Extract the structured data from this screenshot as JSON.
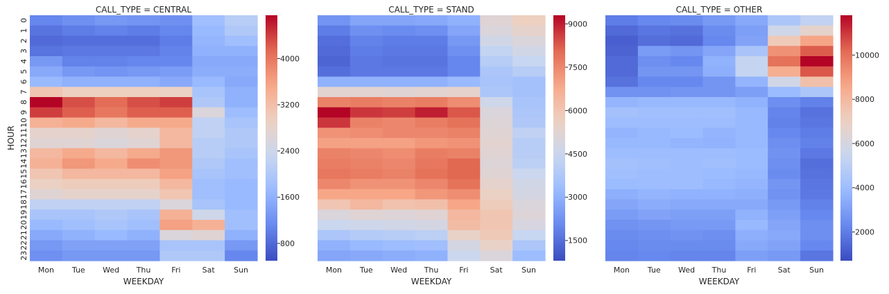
{
  "colormap": {
    "name": "coolwarm",
    "stops": [
      "#3b4cc0",
      "#6788ee",
      "#9abbff",
      "#c9d7f0",
      "#edd1c2",
      "#f7a889",
      "#e26952",
      "#b40426"
    ]
  },
  "chart_data": [
    {
      "type": "heatmap",
      "title": "CALL_TYPE = CENTRAL",
      "xlabel": "WEEKDAY",
      "ylabel": "HOUR",
      "x": [
        "Mon",
        "Tue",
        "Wed",
        "Thu",
        "Fri",
        "Sat",
        "Sun"
      ],
      "y": [
        "0",
        "1",
        "2",
        "3",
        "4",
        "5",
        "6",
        "7",
        "8",
        "9",
        "10",
        "11",
        "12",
        "13",
        "14",
        "15",
        "16",
        "17",
        "18",
        "19",
        "20",
        "21",
        "22",
        "23"
      ],
      "vmin": 500,
      "vmax": 4750,
      "colorbar_ticks": [
        800,
        1600,
        2400,
        3200,
        4000
      ],
      "values": [
        [
          1100,
          1200,
          1300,
          1250,
          1200,
          1800,
          2100
        ],
        [
          900,
          1000,
          1050,
          1000,
          1100,
          1700,
          2000
        ],
        [
          800,
          850,
          850,
          850,
          1000,
          1650,
          1800
        ],
        [
          900,
          950,
          950,
          950,
          1050,
          1600,
          1600
        ],
        [
          1300,
          1050,
          1050,
          1100,
          1100,
          1500,
          1500
        ],
        [
          1500,
          1300,
          1250,
          1300,
          1350,
          1550,
          1550
        ],
        [
          1700,
          1600,
          1600,
          1600,
          1500,
          1700,
          1500
        ],
        [
          3100,
          2950,
          2950,
          2950,
          2900,
          1900,
          1600
        ],
        [
          4750,
          4300,
          4100,
          4300,
          4400,
          2000,
          1600
        ],
        [
          4400,
          4200,
          4000,
          4200,
          4200,
          2600,
          1750
        ],
        [
          3400,
          3500,
          3300,
          3500,
          3500,
          2200,
          1900
        ],
        [
          2800,
          2800,
          2700,
          2800,
          3300,
          2200,
          2000
        ],
        [
          2700,
          2700,
          2600,
          2700,
          3300,
          2100,
          2000
        ],
        [
          3300,
          3500,
          3300,
          3500,
          3700,
          2100,
          1900
        ],
        [
          3400,
          3700,
          3500,
          3800,
          3700,
          2000,
          1800
        ],
        [
          3100,
          3300,
          3300,
          3300,
          3600,
          1900,
          1800
        ],
        [
          2900,
          3000,
          3000,
          3000,
          3300,
          1800,
          1700
        ],
        [
          2700,
          2800,
          2800,
          2800,
          3100,
          1800,
          1700
        ],
        [
          2200,
          2200,
          2200,
          2200,
          2600,
          1900,
          1700
        ],
        [
          1900,
          1900,
          2000,
          1900,
          3400,
          2400,
          1800
        ],
        [
          1700,
          1800,
          1900,
          1800,
          3600,
          3400,
          1800
        ],
        [
          1500,
          1600,
          1700,
          1600,
          2600,
          2700,
          1600
        ],
        [
          1300,
          1400,
          1400,
          1400,
          1900,
          1900,
          1300
        ],
        [
          1200,
          1300,
          1300,
          1300,
          2000,
          2000,
          1100
        ]
      ]
    },
    {
      "type": "heatmap",
      "title": "CALL_TYPE = STAND",
      "xlabel": "WEEKDAY",
      "ylabel": "",
      "x": [
        "Mon",
        "Tue",
        "Wed",
        "Thu",
        "Fri",
        "Sat",
        "Sun"
      ],
      "y": [
        "0",
        "1",
        "2",
        "3",
        "4",
        "5",
        "6",
        "7",
        "8",
        "9",
        "10",
        "11",
        "12",
        "13",
        "14",
        "15",
        "16",
        "17",
        "18",
        "19",
        "20",
        "21",
        "22",
        "23"
      ],
      "vmin": 800,
      "vmax": 9300,
      "colorbar_ticks": [
        1500,
        3000,
        4500,
        6000,
        7500,
        9000
      ],
      "values": [
        [
          2300,
          2700,
          2700,
          2800,
          3000,
          5200,
          5700
        ],
        [
          1800,
          2200,
          2100,
          2200,
          2700,
          5000,
          5400
        ],
        [
          1500,
          1900,
          1800,
          1800,
          2400,
          4700,
          5000
        ],
        [
          1400,
          1800,
          1700,
          1700,
          2200,
          4300,
          4700
        ],
        [
          1300,
          1700,
          1600,
          1600,
          2000,
          4000,
          4400
        ],
        [
          1500,
          1700,
          1700,
          1700,
          2000,
          3700,
          4000
        ],
        [
          3000,
          3000,
          3000,
          3000,
          3200,
          3600,
          3500
        ],
        [
          5300,
          5300,
          5200,
          5300,
          5400,
          3700,
          3500
        ],
        [
          7600,
          7700,
          7600,
          7700,
          7400,
          4600,
          3600
        ],
        [
          9300,
          8700,
          8600,
          9000,
          8300,
          5000,
          3700
        ],
        [
          8700,
          7600,
          7500,
          7700,
          7900,
          5100,
          3800
        ],
        [
          7300,
          7400,
          7500,
          7500,
          7600,
          5200,
          4200
        ],
        [
          7000,
          7000,
          7000,
          7200,
          7300,
          5300,
          4000
        ],
        [
          7600,
          7500,
          7400,
          7700,
          7600,
          5200,
          4000
        ],
        [
          7700,
          7600,
          7500,
          7800,
          8100,
          5100,
          4100
        ],
        [
          7800,
          7700,
          7600,
          7900,
          8100,
          5200,
          4500
        ],
        [
          7500,
          7300,
          7300,
          7500,
          7900,
          5400,
          4700
        ],
        [
          6900,
          6900,
          6900,
          7200,
          7400,
          5600,
          4800
        ],
        [
          6000,
          6400,
          6100,
          6200,
          6900,
          5800,
          5000
        ],
        [
          5000,
          5200,
          5100,
          5200,
          6400,
          6000,
          5100
        ],
        [
          4500,
          4600,
          4700,
          4800,
          6300,
          6000,
          4900
        ],
        [
          3700,
          3900,
          4000,
          4100,
          5500,
          5900,
          4400
        ],
        [
          3000,
          3200,
          3300,
          3400,
          4800,
          5500,
          3700
        ],
        [
          2700,
          2800,
          2900,
          3000,
          4500,
          5000,
          3300
        ]
      ]
    },
    {
      "type": "heatmap",
      "title": "CALL_TYPE = OTHER",
      "xlabel": "WEEKDAY",
      "ylabel": "",
      "x": [
        "Mon",
        "Tue",
        "Wed",
        "Thu",
        "Fri",
        "Sat",
        "Sun"
      ],
      "y": [
        "0",
        "1",
        "2",
        "3",
        "4",
        "5",
        "6",
        "7",
        "8",
        "9",
        "10",
        "11",
        "12",
        "13",
        "14",
        "15",
        "16",
        "17",
        "18",
        "19",
        "20",
        "21",
        "22",
        "23"
      ],
      "vmin": 700,
      "vmax": 11800,
      "colorbar_ticks": [
        2000,
        4000,
        6000,
        8000,
        10000
      ],
      "values": [
        [
          2000,
          2300,
          2400,
          2800,
          3300,
          4500,
          5200
        ],
        [
          1500,
          1800,
          1700,
          2400,
          3000,
          5700,
          6700
        ],
        [
          1200,
          1600,
          1500,
          2300,
          3100,
          7300,
          8700
        ],
        [
          1300,
          2900,
          2700,
          3200,
          4400,
          9200,
          10400
        ],
        [
          1500,
          2500,
          2300,
          3600,
          5300,
          10000,
          11800
        ],
        [
          1500,
          2700,
          2700,
          3500,
          5300,
          8400,
          10500
        ],
        [
          1700,
          2300,
          2300,
          2700,
          3700,
          5800,
          7700
        ],
        [
          2600,
          2600,
          2700,
          2700,
          3000,
          3900,
          4500
        ],
        [
          3700,
          3800,
          3800,
          3800,
          3600,
          2500,
          2100
        ],
        [
          4200,
          4100,
          4100,
          4100,
          3800,
          2200,
          1700
        ],
        [
          4000,
          4000,
          4000,
          4000,
          3800,
          2100,
          1800
        ],
        [
          3700,
          3800,
          3900,
          3700,
          3800,
          2300,
          2000
        ],
        [
          3800,
          3800,
          3700,
          3600,
          3800,
          2500,
          2100
        ],
        [
          4000,
          4000,
          4000,
          4000,
          3900,
          2600,
          1900
        ],
        [
          4200,
          4100,
          4000,
          4100,
          3900,
          2500,
          1600
        ],
        [
          4100,
          4000,
          4000,
          3900,
          3800,
          2400,
          1700
        ],
        [
          3900,
          4000,
          4000,
          3800,
          3700,
          2700,
          1800
        ],
        [
          3500,
          3700,
          3600,
          3600,
          3500,
          2600,
          1900
        ],
        [
          3200,
          3400,
          3300,
          3300,
          3300,
          2800,
          2100
        ],
        [
          2900,
          3100,
          3000,
          3000,
          3600,
          3000,
          2300
        ],
        [
          2600,
          2700,
          2800,
          2800,
          3800,
          3200,
          2500
        ],
        [
          2400,
          2500,
          2600,
          2500,
          3500,
          3300,
          2500
        ],
        [
          2300,
          2400,
          2400,
          2400,
          3300,
          3100,
          2300
        ],
        [
          2200,
          2300,
          2200,
          2200,
          3000,
          2800,
          1800
        ]
      ]
    }
  ]
}
